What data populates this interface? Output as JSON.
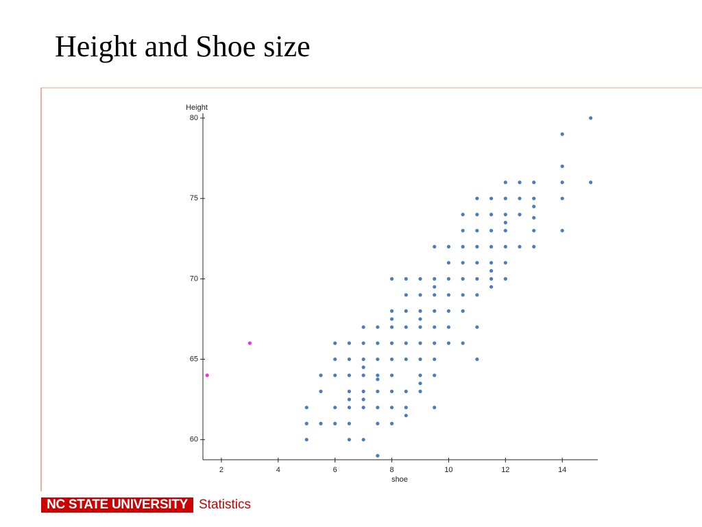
{
  "slide": {
    "title": "Height and Shoe size",
    "footer_logo": "NC STATE UNIVERSITY",
    "footer_text": "Statistics"
  },
  "chart_data": {
    "type": "scatter",
    "ylabel": "Height",
    "xlabel": "shoe",
    "xlim": [
      1.35,
      15.25
    ],
    "ylim": [
      58.75,
      80.3
    ],
    "xticks": [
      2,
      4,
      6,
      8,
      10,
      12,
      14
    ],
    "yticks": [
      60,
      65,
      70,
      75,
      80
    ],
    "series": [
      {
        "color": "#ee33dd",
        "x": [
          1.5,
          3
        ],
        "values": [
          64,
          66
        ]
      },
      {
        "color": "#4a7ebb",
        "x": [
          5,
          5,
          5,
          5.5,
          5.5,
          5.5,
          6,
          6,
          6,
          6,
          6,
          6.5,
          6.5,
          6.5,
          6.5,
          6.5,
          6.5,
          6.5,
          6.5,
          7,
          7,
          7,
          7,
          7,
          7,
          7,
          7,
          7,
          7.5,
          7.5,
          7.5,
          7.5,
          7.5,
          7.5,
          7.5,
          7.5,
          7.5,
          8,
          8,
          8,
          8,
          8,
          8,
          8,
          8,
          8,
          8,
          8.5,
          8.5,
          8.5,
          8.5,
          8.5,
          8.5,
          8.5,
          8.5,
          8.5,
          9,
          9,
          9,
          9,
          9,
          9,
          9,
          9,
          9,
          9,
          9.5,
          9.5,
          9.5,
          9.5,
          9.5,
          9.5,
          9.5,
          9.5,
          9.5,
          9.5,
          10,
          10,
          10,
          10,
          10,
          10,
          10,
          10.5,
          10.5,
          10.5,
          10.5,
          10.5,
          10.5,
          10.5,
          10.5,
          11,
          11,
          11,
          11,
          11,
          11,
          11,
          11,
          11,
          11.5,
          11.5,
          11.5,
          11.5,
          11.5,
          11.5,
          11.5,
          11.5,
          12,
          12,
          12,
          12,
          12,
          12,
          12,
          12,
          12.5,
          12.5,
          12.5,
          12.5,
          13,
          13,
          13,
          13,
          13,
          13,
          14,
          14,
          14,
          14,
          14,
          15,
          15
        ],
        "values": [
          62,
          61,
          60,
          64,
          63,
          61,
          66,
          65,
          64,
          62,
          61,
          66,
          65,
          64,
          63,
          62.5,
          62,
          61,
          60,
          67,
          66,
          65,
          64.5,
          64,
          63,
          62.5,
          62,
          60,
          67,
          66,
          65,
          64,
          63.75,
          63,
          62,
          61,
          59,
          70,
          68,
          67.5,
          67,
          66,
          65,
          64,
          63,
          62,
          61,
          70,
          69,
          68,
          67,
          66,
          65,
          63,
          62,
          61.5,
          70,
          69,
          68,
          67.5,
          67,
          66,
          65,
          64,
          63.5,
          63,
          72,
          70,
          69.5,
          69,
          68,
          67,
          66,
          65,
          64,
          62,
          72,
          71,
          70,
          69,
          68,
          67,
          66,
          74,
          73,
          72,
          71,
          70,
          69,
          68,
          66,
          75,
          74,
          73,
          72,
          71,
          70,
          69,
          67,
          65,
          75,
          74,
          73,
          72,
          71,
          70.5,
          70,
          69.5,
          76,
          75,
          74,
          73.5,
          73,
          72,
          71,
          70,
          76,
          75,
          74,
          72,
          76,
          75,
          74.5,
          73.8,
          73,
          72,
          79,
          77,
          76,
          75,
          73,
          80,
          76
        ]
      }
    ]
  }
}
